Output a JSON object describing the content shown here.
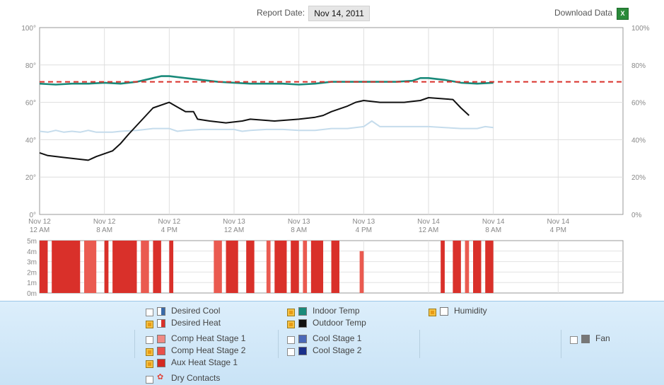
{
  "header": {
    "report_label": "Report Date:",
    "report_date": "Nov 14, 2011",
    "download_label": "Download Data",
    "download_icon": "excel-file-icon"
  },
  "chart_data": [
    {
      "type": "line",
      "title": "",
      "left_axis": {
        "ticks": [
          "0°",
          "20°",
          "40°",
          "60°",
          "80°",
          "100°"
        ],
        "ylim": [
          0,
          100
        ]
      },
      "right_axis": {
        "ticks": [
          "0%",
          "20%",
          "40%",
          "60%",
          "80%",
          "100%"
        ],
        "ylim": [
          0,
          100
        ]
      },
      "x_ticks": [
        {
          "line1": "Nov 12",
          "line2": "12 AM",
          "h": 0
        },
        {
          "line1": "Nov 12",
          "line2": "8 AM",
          "h": 8
        },
        {
          "line1": "Nov 12",
          "line2": "4 PM",
          "h": 16
        },
        {
          "line1": "Nov 13",
          "line2": "12 AM",
          "h": 24
        },
        {
          "line1": "Nov 13",
          "line2": "8 AM",
          "h": 32
        },
        {
          "line1": "Nov 13",
          "line2": "4 PM",
          "h": 40
        },
        {
          "line1": "Nov 14",
          "line2": "12 AM",
          "h": 48
        },
        {
          "line1": "Nov 14",
          "line2": "8 AM",
          "h": 56
        },
        {
          "line1": "Nov 14",
          "line2": "4 PM",
          "h": 64
        }
      ],
      "xlim_hours": [
        0,
        72
      ],
      "grid": true,
      "series": [
        {
          "name": "Desired Heat",
          "color": "#d9302a",
          "style": "dashed",
          "axis": "left",
          "x": [
            0,
            72
          ],
          "y": [
            71,
            71
          ]
        },
        {
          "name": "Indoor Temp",
          "color": "#1a8a7a",
          "axis": "left",
          "x": [
            0,
            2,
            4,
            6,
            8,
            10,
            12,
            14,
            15,
            16,
            18,
            20,
            22,
            24,
            26,
            28,
            30,
            32,
            34,
            36,
            38,
            40,
            42,
            44,
            46,
            47,
            48,
            50,
            52,
            54,
            56
          ],
          "y": [
            70,
            69.5,
            70,
            70,
            70.5,
            70,
            71,
            73,
            74,
            74,
            73,
            72,
            71,
            70.5,
            70,
            70,
            70,
            69.5,
            70,
            71,
            71,
            71,
            71,
            71,
            71.5,
            73,
            73,
            72,
            70.5,
            70,
            70.5
          ]
        },
        {
          "name": "Outdoor Temp",
          "color": "#111111",
          "axis": "left",
          "x": [
            0,
            1,
            3,
            6,
            7,
            9,
            10,
            11,
            14,
            16,
            17,
            18,
            19,
            19.5,
            21,
            23,
            25,
            26,
            29,
            32,
            34,
            35,
            36,
            38,
            39,
            40,
            42,
            44,
            45,
            46,
            47,
            48,
            51,
            52,
            53
          ],
          "y": [
            33,
            31.5,
            30.5,
            29,
            31,
            34,
            38,
            43,
            57,
            60,
            57.5,
            55,
            55,
            51,
            50,
            49,
            50,
            51,
            50,
            51,
            52,
            53,
            55,
            58,
            60,
            61,
            60,
            60,
            60,
            60.5,
            61,
            62.5,
            61.5,
            57,
            53
          ]
        },
        {
          "name": "Humidity",
          "color": "#c5dcec",
          "axis": "right",
          "x": [
            0,
            1,
            2,
            3,
            4,
            5,
            6,
            7,
            8,
            9,
            10,
            12,
            14,
            16,
            17,
            18,
            20,
            22,
            24,
            25,
            26,
            28,
            30,
            32,
            34,
            36,
            38,
            40,
            41,
            42,
            44,
            46,
            48,
            50,
            52,
            54,
            55,
            56
          ],
          "y": [
            44.5,
            44,
            45,
            44,
            44.5,
            44,
            45,
            44,
            44,
            44,
            44.5,
            45,
            46,
            46,
            44.5,
            45,
            45.5,
            45.5,
            45.5,
            44.5,
            45,
            45.5,
            45.5,
            45,
            45,
            46,
            46,
            47,
            50,
            47,
            47,
            47,
            47,
            46.5,
            46,
            46,
            47,
            46.5
          ]
        }
      ]
    },
    {
      "type": "bar",
      "title": "",
      "y_ticks": [
        "0m",
        "1m",
        "2m",
        "3m",
        "4m",
        "5m"
      ],
      "ylim_minutes": [
        0,
        5
      ],
      "xlim_hours": [
        0,
        72
      ],
      "series_name": "Aux Heat Stage 1",
      "color": "#d9302a",
      "color_light": "#ea5a50",
      "segments_hours": [
        [
          0,
          1,
          5
        ],
        [
          1.5,
          5,
          5
        ],
        [
          5.5,
          7,
          5
        ],
        [
          8,
          8.5,
          5
        ],
        [
          9,
          12,
          5
        ],
        [
          12.5,
          13.5,
          5
        ],
        [
          14,
          15,
          5
        ],
        [
          16,
          16.5,
          5
        ],
        [
          21.5,
          22.5,
          5
        ],
        [
          23,
          24.5,
          5
        ],
        [
          25.5,
          26.5,
          5
        ],
        [
          28,
          28.5,
          5
        ],
        [
          29,
          30.5,
          5
        ],
        [
          31,
          32,
          5
        ],
        [
          32.5,
          33,
          5
        ],
        [
          33.5,
          35,
          5
        ],
        [
          36,
          37,
          5
        ],
        [
          39.5,
          40,
          4
        ],
        [
          49.5,
          50,
          5
        ],
        [
          51,
          52,
          5
        ],
        [
          52.5,
          53,
          5
        ],
        [
          53.5,
          54.5,
          5
        ],
        [
          55,
          56,
          5
        ]
      ]
    }
  ],
  "legend": {
    "desired_cool": {
      "label": "Desired Cool",
      "checked": false,
      "color": "#3a6aa8"
    },
    "desired_heat": {
      "label": "Desired Heat",
      "checked": true,
      "color": "#d9302a"
    },
    "indoor_temp": {
      "label": "Indoor Temp",
      "checked": true,
      "color": "#1a8a7a"
    },
    "outdoor_temp": {
      "label": "Outdoor Temp",
      "checked": true,
      "color": "#111111"
    },
    "humidity": {
      "label": "Humidity",
      "checked": true,
      "color": "#ffffff"
    },
    "comp_heat_1": {
      "label": "Comp Heat Stage 1",
      "checked": false,
      "color": "#f08a84"
    },
    "comp_heat_2": {
      "label": "Comp Heat Stage 2",
      "checked": true,
      "color": "#e8504a"
    },
    "aux_heat_1": {
      "label": "Aux Heat Stage 1",
      "checked": true,
      "color": "#d42a22"
    },
    "cool_1": {
      "label": "Cool Stage 1",
      "checked": false,
      "color": "#4a68b8"
    },
    "cool_2": {
      "label": "Cool Stage 2",
      "checked": false,
      "color": "#1a2f8a"
    },
    "fan": {
      "label": "Fan",
      "checked": false,
      "color": "#777777"
    },
    "dry_contacts": {
      "label": "Dry Contacts",
      "checked": false,
      "icon": "wifi-signal-icon"
    }
  }
}
